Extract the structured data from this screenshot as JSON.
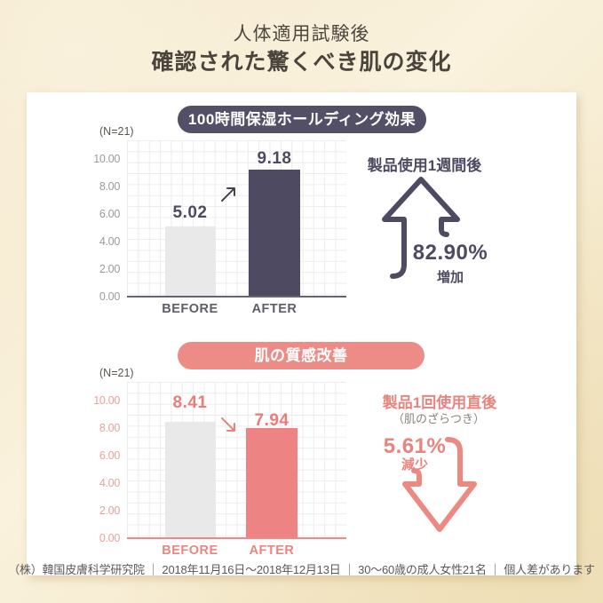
{
  "header": {
    "line1": "人体適用試験後",
    "line2": "確認された驚くべき肌の変化"
  },
  "charts": [
    {
      "header": "100時間保湿ホールディング効果",
      "sample_label": "(N=21)",
      "y_ticks": [
        "10.00",
        "8.00",
        "6.00",
        "4.00",
        "2.00",
        "0.00"
      ],
      "categories": [
        "BEFORE",
        "AFTER"
      ],
      "value_labels": [
        "5.02",
        "9.18"
      ],
      "annotation": {
        "title": "製品使用1週間後",
        "percent": "82.90%",
        "change_label": "増加",
        "direction": "up"
      }
    },
    {
      "header": "肌の質感改善",
      "sample_label": "(N=21)",
      "y_ticks": [
        "10.00",
        "8.00",
        "6.00",
        "4.00",
        "2.00",
        "0.00"
      ],
      "categories": [
        "BEFORE",
        "AFTER"
      ],
      "value_labels": [
        "8.41",
        "7.94"
      ],
      "annotation": {
        "title": "製品1回使用直後",
        "subtitle": "（肌のざらつき）",
        "percent": "5.61%",
        "change_label": "減少",
        "direction": "down"
      }
    }
  ],
  "footer": {
    "text": "（株）韓国皮膚科学研究院 ｜ 2018年11月16日～2018年12月13日 ｜ 30～60歳の成人女性21名 ｜ 個人差があります"
  },
  "colors": {
    "navy": "#4d4a62",
    "salmon": "#ee8383",
    "salmon_pill": "#ed8c86",
    "gray_bar": "#e9e9e9",
    "background_cream": "#f5e8cb",
    "panel": "#ffffff"
  },
  "chart_data": [
    {
      "type": "bar",
      "title": "100時間保湿ホールディング効果",
      "sample_size": 21,
      "categories": [
        "BEFORE",
        "AFTER"
      ],
      "values": [
        5.02,
        9.18
      ],
      "ylim": [
        0,
        10
      ],
      "y_tick_step": 2,
      "grid": true,
      "bar_colors": [
        "#e9e9e9",
        "#4d4a62"
      ],
      "annotation": "製品使用1週間後 82.90% 増加"
    },
    {
      "type": "bar",
      "title": "肌の質感改善",
      "sample_size": 21,
      "categories": [
        "BEFORE",
        "AFTER"
      ],
      "values": [
        8.41,
        7.94
      ],
      "ylim": [
        0,
        10
      ],
      "y_tick_step": 2,
      "grid": true,
      "bar_colors": [
        "#e9e9e9",
        "#ee8383"
      ],
      "annotation": "製品1回使用直後（肌のざらつき）5.61% 減少"
    }
  ]
}
